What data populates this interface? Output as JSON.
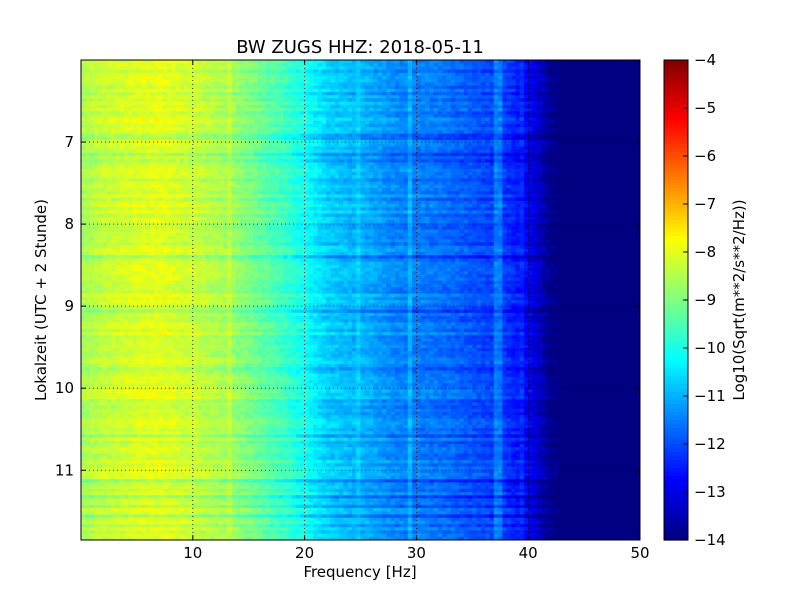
{
  "chart_data": {
    "type": "heatmap",
    "title": "BW ZUGS HHZ: 2018-05-11",
    "xlabel": "Frequency [Hz]",
    "ylabel": "Lokalzeit (UTC + 2 Stunde)",
    "colorbar_label": "Log10(Sqrt(m**2/s**2/Hz))",
    "colormap": "jet",
    "xlim": [
      0,
      50
    ],
    "ylim": [
      11.85,
      6.0
    ],
    "y_inverted": true,
    "clim": [
      -14,
      -4
    ],
    "grid": true,
    "x_ticks": [
      {
        "value": 10,
        "label": "10"
      },
      {
        "value": 20,
        "label": "20"
      },
      {
        "value": 30,
        "label": "30"
      },
      {
        "value": 40,
        "label": "40"
      },
      {
        "value": 50,
        "label": "50"
      }
    ],
    "y_ticks": [
      {
        "value": 7,
        "label": "7"
      },
      {
        "value": 8,
        "label": "8"
      },
      {
        "value": 9,
        "label": "9"
      },
      {
        "value": 10,
        "label": "10"
      },
      {
        "value": 11,
        "label": "11"
      }
    ],
    "colorbar_ticks": [
      {
        "value": -4,
        "label": "−4"
      },
      {
        "value": -5,
        "label": "−5"
      },
      {
        "value": -6,
        "label": "−6"
      },
      {
        "value": -7,
        "label": "−7"
      },
      {
        "value": -8,
        "label": "−8"
      },
      {
        "value": -9,
        "label": "−9"
      },
      {
        "value": -10,
        "label": "−10"
      },
      {
        "value": -11,
        "label": "−11"
      },
      {
        "value": -12,
        "label": "−12"
      },
      {
        "value": -13,
        "label": "−13"
      },
      {
        "value": -14,
        "label": "−14"
      }
    ],
    "frequency_profile": {
      "frequency_hz": [
        0,
        2,
        5,
        7,
        10,
        13,
        15,
        18,
        20,
        22,
        24,
        26,
        28,
        30,
        32,
        34,
        36,
        38,
        40,
        42,
        45,
        50
      ],
      "log10_amplitude": [
        -8.6,
        -8.3,
        -8.1,
        -8.0,
        -8.25,
        -8.6,
        -9.0,
        -9.6,
        -10.1,
        -10.7,
        -10.9,
        -11.1,
        -11.4,
        -11.5,
        -11.6,
        -11.8,
        -12.0,
        -12.2,
        -12.8,
        -13.9,
        -14.0,
        -14.0
      ]
    },
    "narrowband_peaks": [
      {
        "frequency_hz": 13.2,
        "offset": 0.35
      },
      {
        "frequency_hz": 24.8,
        "offset": 0.25
      },
      {
        "frequency_hz": 29.5,
        "offset": 0.45
      },
      {
        "frequency_hz": 37.3,
        "offset": 0.6
      },
      {
        "frequency_hz": 39.5,
        "offset": 0.3
      }
    ]
  }
}
